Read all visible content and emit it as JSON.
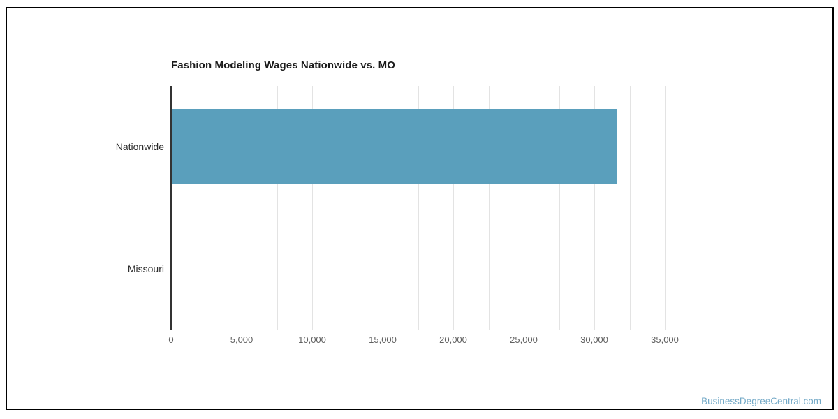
{
  "watermark": {
    "text": "BusinessDegreeCentral.com",
    "color": "#73A9C7"
  },
  "chart_data": {
    "type": "bar",
    "orientation": "horizontal",
    "title": "Fashion Modeling Wages Nationwide vs. MO",
    "categories": [
      "Nationwide",
      "Missouri"
    ],
    "values": [
      31600,
      0
    ],
    "xlabel": "",
    "ylabel": "",
    "xlim": [
      0,
      35000
    ],
    "x_major_ticks": [
      0,
      5000,
      10000,
      15000,
      20000,
      25000,
      30000,
      35000
    ],
    "x_minor_tick_step": 2500,
    "grid": true,
    "legend": "none",
    "bar_color": "#5A9FBC",
    "axis_color": "#333333",
    "gridline_color": "#e3e3e3",
    "tick_label_color": "#616161",
    "category_label_color": "#2b2b2b"
  }
}
